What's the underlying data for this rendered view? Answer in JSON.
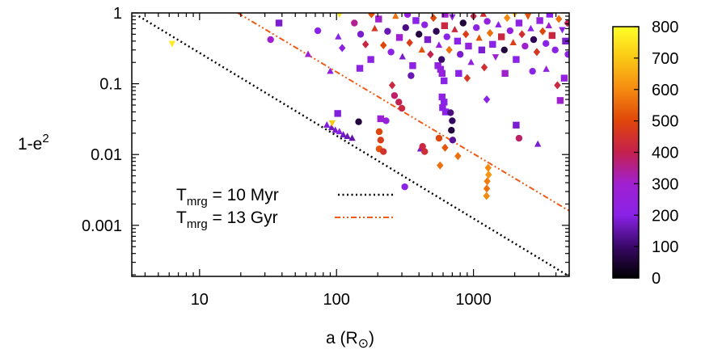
{
  "chart_data": {
    "type": "scatter",
    "xlabel": {
      "base": "a (R",
      "sub": "⊙",
      "close": ")"
    },
    "ylabel": {
      "base": "1-e",
      "sup": "2"
    },
    "xscale": "log",
    "yscale": "log",
    "xlim": [
      3.2,
      5000
    ],
    "ylim": [
      0.00019,
      1
    ],
    "x_ticks": [
      {
        "value": 10,
        "label": "10"
      },
      {
        "value": 100,
        "label": "100"
      },
      {
        "value": 1000,
        "label": "1000"
      }
    ],
    "y_ticks": [
      {
        "value": 1,
        "label": "1"
      },
      {
        "value": 0.1,
        "label": "0.1"
      },
      {
        "value": 0.01,
        "label": "0.01"
      },
      {
        "value": 0.001,
        "label": "0.001"
      }
    ],
    "grid": false,
    "colorbar": {
      "range": [
        0,
        800
      ],
      "ticks": [
        {
          "value": 800,
          "label": "800"
        },
        {
          "value": 700,
          "label": "700"
        },
        {
          "value": 600,
          "label": "600"
        },
        {
          "value": 500,
          "label": "500"
        },
        {
          "value": 400,
          "label": "400"
        },
        {
          "value": 300,
          "label": "300"
        },
        {
          "value": 200,
          "label": "200"
        },
        {
          "value": 100,
          "label": "100"
        },
        {
          "value": 0,
          "label": "0"
        }
      ],
      "colormap": [
        "#000000",
        "#3a0868",
        "#8a22e8",
        "#a020d0",
        "#c4204e",
        "#e0460a",
        "#f58a10",
        "#fac815",
        "#ffff28"
      ]
    },
    "legend": {
      "placement": "bottom-left",
      "entries": [
        {
          "prefix": "T",
          "sub": "mrg",
          "text": " = 10 Myr",
          "color": "#000000",
          "dash": "dotted"
        },
        {
          "prefix": "T",
          "sub": "mrg",
          "text": " = 13 Gyr",
          "color": "#f05a14",
          "dash": "dash-dot-dot"
        }
      ]
    },
    "series": [
      {
        "type": "line",
        "color": "#000000",
        "dash": "dotted",
        "points": [
          [
            3.6,
            0.9
          ],
          [
            5000,
            0.00019
          ]
        ]
      },
      {
        "type": "line",
        "color": "#f05a14",
        "dash": "dash-dot-dot",
        "points": [
          [
            19,
            1.0
          ],
          [
            5000,
            0.0016
          ]
        ]
      }
    ],
    "points": [
      {
        "x": 6.3,
        "y": 0.37,
        "c": 760,
        "m": "tridown"
      },
      {
        "x": 90,
        "y": 0.15,
        "c": 220,
        "m": "tri"
      },
      {
        "x": 85,
        "y": 0.026,
        "c": 190,
        "m": "tri"
      },
      {
        "x": 92,
        "y": 0.024,
        "c": 170,
        "m": "tri"
      },
      {
        "x": 98,
        "y": 0.022,
        "c": 180,
        "m": "tri"
      },
      {
        "x": 105,
        "y": 0.021,
        "c": 200,
        "m": "tri"
      },
      {
        "x": 112,
        "y": 0.019,
        "c": 170,
        "m": "tri"
      },
      {
        "x": 120,
        "y": 0.018,
        "c": 160,
        "m": "tri"
      },
      {
        "x": 130,
        "y": 0.017,
        "c": 150,
        "m": "tri"
      },
      {
        "x": 93,
        "y": 0.028,
        "c": 700,
        "m": "tridown"
      },
      {
        "x": 102,
        "y": 0.038,
        "c": 190,
        "m": "sq"
      },
      {
        "x": 148,
        "y": 0.165,
        "c": 220,
        "m": "sq"
      },
      {
        "x": 145,
        "y": 0.029,
        "c": 60,
        "m": "circ"
      },
      {
        "x": 315,
        "y": 0.0035,
        "c": 210,
        "m": "circ"
      },
      {
        "x": 210,
        "y": 0.032,
        "c": 280,
        "m": "sq"
      },
      {
        "x": 230,
        "y": 0.03,
        "c": 250,
        "m": "circ"
      },
      {
        "x": 205,
        "y": 0.021,
        "c": 500,
        "m": "circ"
      },
      {
        "x": 210,
        "y": 0.016,
        "c": 480,
        "m": "circ"
      },
      {
        "x": 205,
        "y": 0.012,
        "c": 520,
        "m": "circ"
      },
      {
        "x": 220,
        "y": 0.011,
        "c": 450,
        "m": "circ"
      },
      {
        "x": 255,
        "y": 0.095,
        "c": 420,
        "m": "diam"
      },
      {
        "x": 265,
        "y": 0.068,
        "c": 380,
        "m": "circ"
      },
      {
        "x": 285,
        "y": 0.055,
        "c": 400,
        "m": "circ"
      },
      {
        "x": 300,
        "y": 0.045,
        "c": 420,
        "m": "circ"
      },
      {
        "x": 410,
        "y": 0.012,
        "c": 180,
        "m": "tri"
      },
      {
        "x": 425,
        "y": 0.013,
        "c": 420,
        "m": "circ"
      },
      {
        "x": 440,
        "y": 0.011,
        "c": 440,
        "m": "circ"
      },
      {
        "x": 550,
        "y": 0.18,
        "c": 240,
        "m": "sq"
      },
      {
        "x": 575,
        "y": 0.16,
        "c": 230,
        "m": "sq"
      },
      {
        "x": 590,
        "y": 0.14,
        "c": 250,
        "m": "sq"
      },
      {
        "x": 610,
        "y": 0.11,
        "c": 200,
        "m": "sq"
      },
      {
        "x": 590,
        "y": 0.065,
        "c": 230,
        "m": "sq"
      },
      {
        "x": 610,
        "y": 0.055,
        "c": 200,
        "m": "sq"
      },
      {
        "x": 595,
        "y": 0.046,
        "c": 220,
        "m": "sq"
      },
      {
        "x": 625,
        "y": 0.04,
        "c": 210,
        "m": "sq"
      },
      {
        "x": 560,
        "y": 0.017,
        "c": 500,
        "m": "circ"
      },
      {
        "x": 570,
        "y": 0.007,
        "c": 560,
        "m": "diam"
      },
      {
        "x": 680,
        "y": 0.039,
        "c": 120,
        "m": "circ"
      },
      {
        "x": 700,
        "y": 0.03,
        "c": 90,
        "m": "circ"
      },
      {
        "x": 690,
        "y": 0.022,
        "c": 60,
        "m": "circ"
      },
      {
        "x": 705,
        "y": 0.016,
        "c": 140,
        "m": "circ"
      },
      {
        "x": 770,
        "y": 0.0095,
        "c": 560,
        "m": "diam"
      },
      {
        "x": 620,
        "y": 0.0125,
        "c": 520,
        "m": "diam"
      },
      {
        "x": 1250,
        "y": 0.06,
        "c": 200,
        "m": "diam"
      },
      {
        "x": 1280,
        "y": 0.0065,
        "c": 600,
        "m": "diam"
      },
      {
        "x": 1290,
        "y": 0.0052,
        "c": 620,
        "m": "diam"
      },
      {
        "x": 1260,
        "y": 0.0042,
        "c": 580,
        "m": "diam"
      },
      {
        "x": 1250,
        "y": 0.0033,
        "c": 560,
        "m": "diam"
      },
      {
        "x": 1245,
        "y": 0.0026,
        "c": 600,
        "m": "diam"
      },
      {
        "x": 2050,
        "y": 0.026,
        "c": 180,
        "m": "sq"
      },
      {
        "x": 2150,
        "y": 0.017,
        "c": 380,
        "m": "circ"
      },
      {
        "x": 2950,
        "y": 0.014,
        "c": 180,
        "m": "tri"
      },
      {
        "x": 4100,
        "y": 0.095,
        "c": 420,
        "m": "diam"
      },
      {
        "x": 4300,
        "y": 0.058,
        "c": 300,
        "m": "sq"
      },
      {
        "x": 38,
        "y": 0.72,
        "c": 180,
        "m": "sq"
      },
      {
        "x": 33,
        "y": 0.42,
        "c": 300,
        "m": "circ"
      },
      {
        "x": 73,
        "y": 0.56,
        "c": 200,
        "m": "circ"
      },
      {
        "x": 62,
        "y": 0.26,
        "c": 300,
        "m": "tri"
      },
      {
        "x": 103,
        "y": 0.46,
        "c": 200,
        "m": "tri"
      },
      {
        "x": 110,
        "y": 0.32,
        "c": 220,
        "m": "diam"
      },
      {
        "x": 135,
        "y": 0.72,
        "c": 350,
        "m": "circ"
      },
      {
        "x": 150,
        "y": 0.5,
        "c": 180,
        "m": "circ"
      },
      {
        "x": 163,
        "y": 0.36,
        "c": 420,
        "m": "diam"
      },
      {
        "x": 178,
        "y": 0.22,
        "c": 220,
        "m": "sq"
      },
      {
        "x": 190,
        "y": 0.6,
        "c": 460,
        "m": "tri"
      },
      {
        "x": 203,
        "y": 0.82,
        "c": 300,
        "m": "sq"
      },
      {
        "x": 220,
        "y": 0.35,
        "c": 500,
        "m": "diam"
      },
      {
        "x": 236,
        "y": 0.55,
        "c": 160,
        "m": "circ"
      },
      {
        "x": 250,
        "y": 0.28,
        "c": 220,
        "m": "circ"
      },
      {
        "x": 270,
        "y": 0.9,
        "c": 560,
        "m": "tri"
      },
      {
        "x": 288,
        "y": 0.45,
        "c": 300,
        "m": "sq"
      },
      {
        "x": 303,
        "y": 0.24,
        "c": 180,
        "m": "tri"
      },
      {
        "x": 320,
        "y": 0.62,
        "c": 120,
        "m": "circ"
      },
      {
        "x": 342,
        "y": 0.38,
        "c": 480,
        "m": "diam"
      },
      {
        "x": 360,
        "y": 0.18,
        "c": 220,
        "m": "sq"
      },
      {
        "x": 380,
        "y": 0.78,
        "c": 200,
        "m": "sq"
      },
      {
        "x": 400,
        "y": 0.5,
        "c": 60,
        "m": "circ"
      },
      {
        "x": 420,
        "y": 0.3,
        "c": 520,
        "m": "tri"
      },
      {
        "x": 440,
        "y": 0.68,
        "c": 220,
        "m": "circ"
      },
      {
        "x": 463,
        "y": 0.42,
        "c": 180,
        "m": "sq"
      },
      {
        "x": 485,
        "y": 0.26,
        "c": 400,
        "m": "diam"
      },
      {
        "x": 510,
        "y": 0.85,
        "c": 500,
        "m": "diam"
      },
      {
        "x": 535,
        "y": 0.55,
        "c": 80,
        "m": "circ"
      },
      {
        "x": 560,
        "y": 0.35,
        "c": 240,
        "m": "tri"
      },
      {
        "x": 585,
        "y": 0.22,
        "c": 100,
        "m": "circ"
      },
      {
        "x": 615,
        "y": 0.66,
        "c": 420,
        "m": "sq"
      },
      {
        "x": 640,
        "y": 0.46,
        "c": 200,
        "m": "circ"
      },
      {
        "x": 665,
        "y": 0.3,
        "c": 560,
        "m": "diam"
      },
      {
        "x": 700,
        "y": 0.88,
        "c": 220,
        "m": "tridown"
      },
      {
        "x": 730,
        "y": 0.58,
        "c": 420,
        "m": "tri"
      },
      {
        "x": 765,
        "y": 0.4,
        "c": 200,
        "m": "sq"
      },
      {
        "x": 800,
        "y": 0.26,
        "c": 180,
        "m": "circ"
      },
      {
        "x": 840,
        "y": 0.72,
        "c": 60,
        "m": "circ"
      },
      {
        "x": 880,
        "y": 0.5,
        "c": 480,
        "m": "diam"
      },
      {
        "x": 920,
        "y": 0.34,
        "c": 240,
        "m": "sq"
      },
      {
        "x": 960,
        "y": 0.2,
        "c": 220,
        "m": "tri"
      },
      {
        "x": 1000,
        "y": 0.9,
        "c": 400,
        "m": "diam"
      },
      {
        "x": 1050,
        "y": 0.62,
        "c": 220,
        "m": "circ"
      },
      {
        "x": 1100,
        "y": 0.44,
        "c": 520,
        "m": "tri"
      },
      {
        "x": 1150,
        "y": 0.3,
        "c": 180,
        "m": "sq"
      },
      {
        "x": 1200,
        "y": 0.17,
        "c": 440,
        "m": "diam"
      },
      {
        "x": 1260,
        "y": 0.76,
        "c": 240,
        "m": "circ"
      },
      {
        "x": 1320,
        "y": 0.52,
        "c": 560,
        "m": "diam"
      },
      {
        "x": 1380,
        "y": 0.36,
        "c": 200,
        "m": "sq"
      },
      {
        "x": 1450,
        "y": 0.24,
        "c": 300,
        "m": "tridown"
      },
      {
        "x": 1520,
        "y": 0.68,
        "c": 200,
        "m": "tri"
      },
      {
        "x": 1600,
        "y": 0.46,
        "c": 420,
        "m": "sq"
      },
      {
        "x": 1680,
        "y": 0.3,
        "c": 60,
        "m": "circ"
      },
      {
        "x": 1760,
        "y": 0.85,
        "c": 600,
        "m": "diam"
      },
      {
        "x": 1850,
        "y": 0.56,
        "c": 240,
        "m": "circ"
      },
      {
        "x": 1950,
        "y": 0.38,
        "c": 480,
        "m": "tri"
      },
      {
        "x": 2050,
        "y": 0.22,
        "c": 200,
        "m": "sq"
      },
      {
        "x": 2150,
        "y": 0.72,
        "c": 220,
        "m": "sq"
      },
      {
        "x": 2260,
        "y": 0.5,
        "c": 440,
        "m": "diam"
      },
      {
        "x": 2380,
        "y": 0.34,
        "c": 300,
        "m": "circ"
      },
      {
        "x": 2500,
        "y": 0.9,
        "c": 520,
        "m": "tridown"
      },
      {
        "x": 2620,
        "y": 0.6,
        "c": 200,
        "m": "tri"
      },
      {
        "x": 2750,
        "y": 0.42,
        "c": 80,
        "m": "circ"
      },
      {
        "x": 2900,
        "y": 0.28,
        "c": 460,
        "m": "diam"
      },
      {
        "x": 3050,
        "y": 0.78,
        "c": 240,
        "m": "sq"
      },
      {
        "x": 3200,
        "y": 0.55,
        "c": 500,
        "m": "diam"
      },
      {
        "x": 3380,
        "y": 0.37,
        "c": 200,
        "m": "circ"
      },
      {
        "x": 3550,
        "y": 0.66,
        "c": 300,
        "m": "tri"
      },
      {
        "x": 3750,
        "y": 0.48,
        "c": 420,
        "m": "sq"
      },
      {
        "x": 3950,
        "y": 0.3,
        "c": 200,
        "m": "circ"
      },
      {
        "x": 4200,
        "y": 0.82,
        "c": 560,
        "m": "diam"
      },
      {
        "x": 4450,
        "y": 0.58,
        "c": 220,
        "m": "tridown"
      },
      {
        "x": 4700,
        "y": 0.4,
        "c": 180,
        "m": "sq"
      },
      {
        "x": 4850,
        "y": 0.72,
        "c": 400,
        "m": "diam"
      },
      {
        "x": 4900,
        "y": 0.26,
        "c": 200,
        "m": "circ"
      },
      {
        "x": 3400,
        "y": 0.16,
        "c": 240,
        "m": "tri"
      },
      {
        "x": 2700,
        "y": 0.15,
        "c": 200,
        "m": "circ"
      },
      {
        "x": 1700,
        "y": 0.14,
        "c": 300,
        "m": "sq"
      },
      {
        "x": 900,
        "y": 0.12,
        "c": 460,
        "m": "diam"
      },
      {
        "x": 780,
        "y": 0.14,
        "c": 200,
        "m": "sq"
      },
      {
        "x": 350,
        "y": 0.13,
        "c": 160,
        "m": "circ"
      },
      {
        "x": 4600,
        "y": 0.12,
        "c": 240,
        "m": "sq"
      },
      {
        "x": 105,
        "y": 0.96,
        "c": 760,
        "m": "tridown"
      },
      {
        "x": 180,
        "y": 0.96,
        "c": 520,
        "m": "diam"
      },
      {
        "x": 330,
        "y": 0.95,
        "c": 240,
        "m": "circ"
      },
      {
        "x": 620,
        "y": 0.96,
        "c": 300,
        "m": "sq"
      },
      {
        "x": 1180,
        "y": 0.96,
        "c": 440,
        "m": "tri"
      },
      {
        "x": 2000,
        "y": 0.96,
        "c": 700,
        "m": "tridown"
      },
      {
        "x": 3600,
        "y": 0.96,
        "c": 200,
        "m": "sq"
      }
    ]
  }
}
